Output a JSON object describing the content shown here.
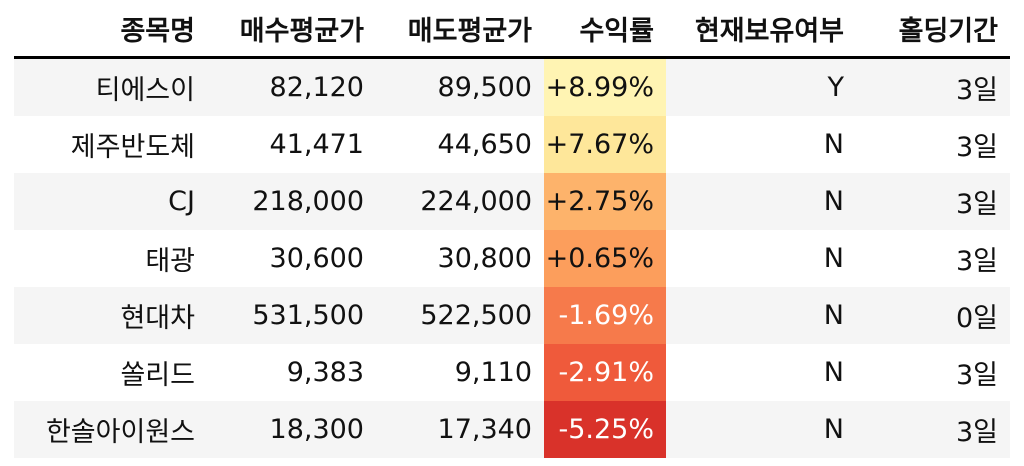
{
  "table": {
    "headers": [
      "종목명",
      "매수평균가",
      "매도평균가",
      "수익률",
      "현재보유여부",
      "홀딩기간"
    ],
    "rows": [
      {
        "name": "티에스이",
        "buy": "82,120",
        "sell": "89,500",
        "ret": "+8.99%",
        "holding": "Y",
        "period": "3일",
        "ret_bg": "#fff4b3",
        "ret_fg": "#111111"
      },
      {
        "name": "제주반도체",
        "buy": "41,471",
        "sell": "44,650",
        "ret": "+7.67%",
        "holding": "N",
        "period": "3일",
        "ret_bg": "#fee79a",
        "ret_fg": "#111111"
      },
      {
        "name": "CJ",
        "buy": "218,000",
        "sell": "224,000",
        "ret": "+2.75%",
        "holding": "N",
        "period": "3일",
        "ret_bg": "#fdb36b",
        "ret_fg": "#111111"
      },
      {
        "name": "태광",
        "buy": "30,600",
        "sell": "30,800",
        "ret": "+0.65%",
        "holding": "N",
        "period": "3일",
        "ret_bg": "#fc9e5c",
        "ret_fg": "#111111"
      },
      {
        "name": "현대차",
        "buy": "531,500",
        "sell": "522,500",
        "ret": "-1.69%",
        "holding": "N",
        "period": "0일",
        "ret_bg": "#f67a4b",
        "ret_fg": "#ffffff"
      },
      {
        "name": "쏠리드",
        "buy": "9,383",
        "sell": "9,110",
        "ret": "-2.91%",
        "holding": "N",
        "period": "3일",
        "ret_bg": "#ef5a3b",
        "ret_fg": "#ffffff"
      },
      {
        "name": "한솔아이원스",
        "buy": "18,300",
        "sell": "17,340",
        "ret": "-5.25%",
        "holding": "N",
        "period": "3일",
        "ret_bg": "#d9322a",
        "ret_fg": "#ffffff"
      }
    ]
  }
}
